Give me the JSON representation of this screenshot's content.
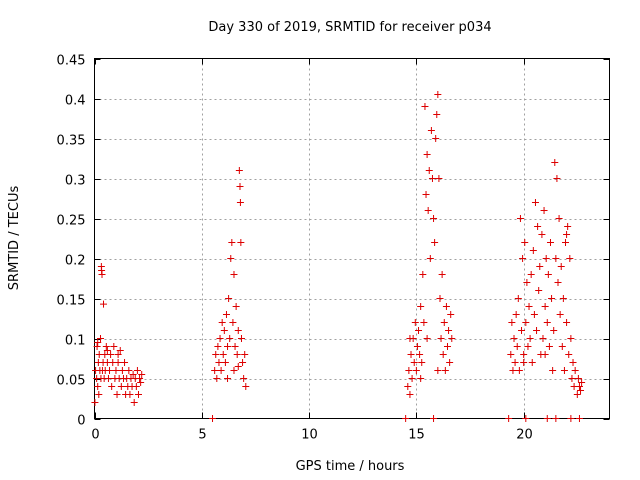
{
  "chart_data": {
    "type": "scatter",
    "title": "Day 330 of 2019, SRMTID for receiver p034",
    "xlabel": "GPS time / hours",
    "ylabel": "SRMTID / TECUs",
    "xlim": [
      0,
      24
    ],
    "ylim": [
      0,
      0.45
    ],
    "x_ticks": [
      0,
      5,
      10,
      15,
      20
    ],
    "y_ticks": [
      0,
      0.05,
      0.1,
      0.15,
      0.2,
      0.25,
      0.3,
      0.35,
      0.4,
      0.45
    ],
    "grid": true,
    "marker": "+",
    "series_color": "#dd0000",
    "series": [
      {
        "name": "SRMTID",
        "points": [
          [
            0.05,
            0.06
          ],
          [
            0.1,
            0.05
          ],
          [
            0.12,
            0.09
          ],
          [
            0.15,
            0.04
          ],
          [
            0.18,
            0.07
          ],
          [
            0.2,
            0.03
          ],
          [
            0.22,
            0.08
          ],
          [
            0.25,
            0.06
          ],
          [
            0.28,
            0.1
          ],
          [
            0.3,
            0.05
          ],
          [
            0.32,
            0.19
          ],
          [
            0.33,
            0.185
          ],
          [
            0.35,
            0.18
          ],
          [
            0.37,
            0.06
          ],
          [
            0.4,
            0.07
          ],
          [
            0.42,
            0.143
          ],
          [
            0.45,
            0.05
          ],
          [
            0.48,
            0.08
          ],
          [
            0.5,
            0.06
          ],
          [
            0.55,
            0.09
          ],
          [
            0.6,
            0.07
          ],
          [
            0.65,
            0.05
          ],
          [
            0.7,
            0.06
          ],
          [
            0.75,
            0.08
          ],
          [
            0.8,
            0.04
          ],
          [
            0.85,
            0.07
          ],
          [
            0.9,
            0.09
          ],
          [
            0.95,
            0.05
          ],
          [
            1.0,
            0.06
          ],
          [
            1.05,
            0.03
          ],
          [
            1.1,
            0.07
          ],
          [
            1.15,
            0.05
          ],
          [
            1.2,
            0.085
          ],
          [
            1.25,
            0.04
          ],
          [
            1.3,
            0.06
          ],
          [
            1.35,
            0.05
          ],
          [
            1.4,
            0.07
          ],
          [
            1.45,
            0.03
          ],
          [
            1.5,
            0.05
          ],
          [
            1.55,
            0.04
          ],
          [
            1.6,
            0.06
          ],
          [
            1.65,
            0.03
          ],
          [
            1.7,
            0.05
          ],
          [
            1.75,
            0.04
          ],
          [
            1.8,
            0.055
          ],
          [
            1.85,
            0.02
          ],
          [
            1.9,
            0.05
          ],
          [
            1.95,
            0.04
          ],
          [
            2.0,
            0.06
          ],
          [
            2.05,
            0.03
          ],
          [
            2.1,
            0.05
          ],
          [
            2.15,
            0.045
          ],
          [
            2.2,
            0.055
          ],
          [
            0.15,
            0.095
          ],
          [
            0.6,
            0.085
          ],
          [
            1.1,
            0.08
          ],
          [
            0.02,
            0.02
          ],
          [
            5.5,
            0.0
          ],
          [
            5.6,
            0.06
          ],
          [
            5.65,
            0.08
          ],
          [
            5.7,
            0.05
          ],
          [
            5.75,
            0.09
          ],
          [
            5.8,
            0.07
          ],
          [
            5.85,
            0.1
          ],
          [
            5.9,
            0.06
          ],
          [
            5.95,
            0.12
          ],
          [
            6.0,
            0.08
          ],
          [
            6.05,
            0.11
          ],
          [
            6.1,
            0.07
          ],
          [
            6.15,
            0.13
          ],
          [
            6.2,
            0.09
          ],
          [
            6.25,
            0.15
          ],
          [
            6.3,
            0.1
          ],
          [
            6.35,
            0.2
          ],
          [
            6.4,
            0.22
          ],
          [
            6.45,
            0.12
          ],
          [
            6.5,
            0.18
          ],
          [
            6.55,
            0.09
          ],
          [
            6.6,
            0.14
          ],
          [
            6.65,
            0.08
          ],
          [
            6.7,
            0.11
          ],
          [
            6.75,
            0.31
          ],
          [
            6.78,
            0.29
          ],
          [
            6.8,
            0.27
          ],
          [
            6.82,
            0.22
          ],
          [
            6.85,
            0.1
          ],
          [
            6.9,
            0.07
          ],
          [
            6.95,
            0.05
          ],
          [
            7.0,
            0.08
          ],
          [
            7.05,
            0.04
          ],
          [
            6.5,
            0.06
          ],
          [
            6.2,
            0.05
          ],
          [
            6.7,
            0.065
          ],
          [
            14.5,
            0.0
          ],
          [
            15.8,
            0.0
          ],
          [
            14.6,
            0.04
          ],
          [
            14.65,
            0.06
          ],
          [
            14.7,
            0.03
          ],
          [
            14.75,
            0.08
          ],
          [
            14.8,
            0.05
          ],
          [
            14.85,
            0.1
          ],
          [
            14.9,
            0.07
          ],
          [
            14.95,
            0.12
          ],
          [
            15.0,
            0.06
          ],
          [
            15.05,
            0.09
          ],
          [
            15.1,
            0.11
          ],
          [
            15.15,
            0.08
          ],
          [
            15.2,
            0.14
          ],
          [
            15.25,
            0.07
          ],
          [
            15.3,
            0.18
          ],
          [
            15.35,
            0.12
          ],
          [
            15.4,
            0.39
          ],
          [
            15.45,
            0.28
          ],
          [
            15.5,
            0.33
          ],
          [
            15.55,
            0.26
          ],
          [
            15.6,
            0.31
          ],
          [
            15.65,
            0.2
          ],
          [
            15.7,
            0.36
          ],
          [
            15.75,
            0.3
          ],
          [
            15.8,
            0.25
          ],
          [
            15.85,
            0.22
          ],
          [
            15.9,
            0.35
          ],
          [
            15.95,
            0.38
          ],
          [
            16.0,
            0.405
          ],
          [
            16.05,
            0.3
          ],
          [
            16.1,
            0.15
          ],
          [
            16.15,
            0.1
          ],
          [
            16.2,
            0.18
          ],
          [
            16.25,
            0.08
          ],
          [
            16.3,
            0.12
          ],
          [
            16.35,
            0.06
          ],
          [
            16.4,
            0.14
          ],
          [
            16.45,
            0.09
          ],
          [
            16.5,
            0.11
          ],
          [
            16.55,
            0.07
          ],
          [
            16.6,
            0.13
          ],
          [
            16.65,
            0.1
          ],
          [
            15.2,
            0.05
          ],
          [
            15.5,
            0.1
          ],
          [
            16.0,
            0.06
          ],
          [
            14.7,
            0.1
          ],
          [
            19.3,
            0.0
          ],
          [
            20.1,
            0.0
          ],
          [
            21.1,
            0.0
          ],
          [
            21.5,
            0.0
          ],
          [
            22.2,
            0.0
          ],
          [
            22.6,
            0.0
          ],
          [
            19.4,
            0.08
          ],
          [
            19.45,
            0.12
          ],
          [
            19.5,
            0.06
          ],
          [
            19.55,
            0.1
          ],
          [
            19.6,
            0.07
          ],
          [
            19.65,
            0.13
          ],
          [
            19.7,
            0.09
          ],
          [
            19.75,
            0.15
          ],
          [
            19.8,
            0.06
          ],
          [
            19.85,
            0.25
          ],
          [
            19.9,
            0.11
          ],
          [
            19.95,
            0.2
          ],
          [
            20.0,
            0.08
          ],
          [
            20.05,
            0.22
          ],
          [
            20.1,
            0.12
          ],
          [
            20.15,
            0.17
          ],
          [
            20.2,
            0.09
          ],
          [
            20.25,
            0.14
          ],
          [
            20.3,
            0.1
          ],
          [
            20.35,
            0.18
          ],
          [
            20.4,
            0.07
          ],
          [
            20.45,
            0.21
          ],
          [
            20.5,
            0.13
          ],
          [
            20.55,
            0.27
          ],
          [
            20.6,
            0.11
          ],
          [
            20.65,
            0.24
          ],
          [
            20.7,
            0.16
          ],
          [
            20.75,
            0.19
          ],
          [
            20.8,
            0.08
          ],
          [
            20.85,
            0.23
          ],
          [
            20.9,
            0.1
          ],
          [
            20.95,
            0.26
          ],
          [
            21.0,
            0.14
          ],
          [
            21.05,
            0.2
          ],
          [
            21.1,
            0.12
          ],
          [
            21.15,
            0.18
          ],
          [
            21.2,
            0.09
          ],
          [
            21.25,
            0.22
          ],
          [
            21.3,
            0.15
          ],
          [
            21.35,
            0.06
          ],
          [
            21.4,
            0.11
          ],
          [
            21.45,
            0.32
          ],
          [
            21.5,
            0.2
          ],
          [
            21.55,
            0.3
          ],
          [
            21.6,
            0.17
          ],
          [
            21.65,
            0.25
          ],
          [
            21.7,
            0.13
          ],
          [
            21.75,
            0.19
          ],
          [
            21.8,
            0.09
          ],
          [
            21.85,
            0.15
          ],
          [
            21.9,
            0.06
          ],
          [
            21.95,
            0.22
          ],
          [
            22.0,
            0.12
          ],
          [
            22.05,
            0.24
          ],
          [
            22.1,
            0.08
          ],
          [
            22.15,
            0.2
          ],
          [
            22.2,
            0.1
          ],
          [
            22.25,
            0.05
          ],
          [
            22.3,
            0.07
          ],
          [
            22.35,
            0.04
          ],
          [
            22.4,
            0.06
          ],
          [
            22.5,
            0.03
          ],
          [
            22.55,
            0.05
          ],
          [
            22.6,
            0.04
          ],
          [
            22.65,
            0.035
          ],
          [
            22.7,
            0.045
          ],
          [
            20.0,
            0.07
          ],
          [
            21.0,
            0.08
          ],
          [
            22.0,
            0.23
          ]
        ]
      }
    ]
  }
}
